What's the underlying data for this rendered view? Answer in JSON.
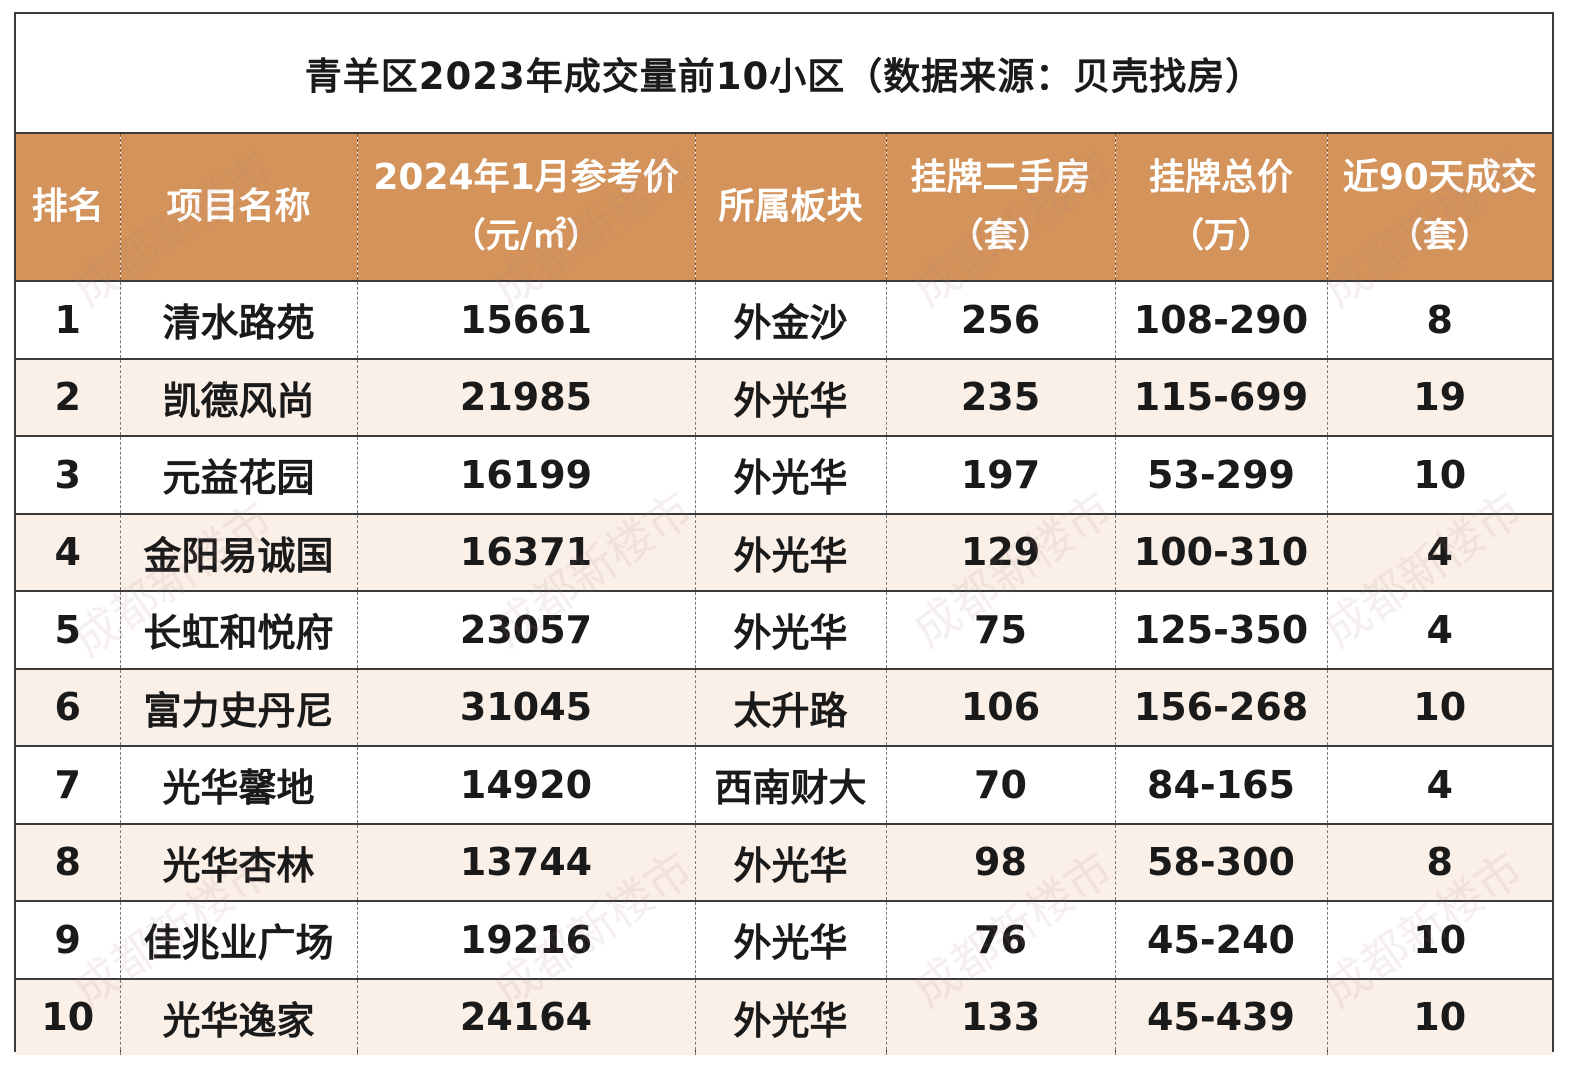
{
  "title": "青羊区2023年成交量前10小区（数据来源：贝壳找房）",
  "headers": [
    {
      "l1": "排名",
      "l2": ""
    },
    {
      "l1": "项目名称",
      "l2": ""
    },
    {
      "l1": "2024年1月参考价",
      "l2": "（元/㎡）"
    },
    {
      "l1": "所属板块",
      "l2": ""
    },
    {
      "l1": "挂牌二手房",
      "l2": "（套）"
    },
    {
      "l1": "挂牌总价",
      "l2": "（万）"
    },
    {
      "l1": "近90天成交",
      "l2": "（套）"
    }
  ],
  "rows": [
    [
      "1",
      "清水路苑",
      "15661",
      "外金沙",
      "256",
      "108-290",
      "8"
    ],
    [
      "2",
      "凯德风尚",
      "21985",
      "外光华",
      "235",
      "115-699",
      "19"
    ],
    [
      "3",
      "元益花园",
      "16199",
      "外光华",
      "197",
      "53-299",
      "10"
    ],
    [
      "4",
      "金阳易诚国",
      "16371",
      "外光华",
      "129",
      "100-310",
      "4"
    ],
    [
      "5",
      "长虹和悦府",
      "23057",
      "外光华",
      "75",
      "125-350",
      "4"
    ],
    [
      "6",
      "富力史丹尼",
      "31045",
      "太升路",
      "106",
      "156-268",
      "10"
    ],
    [
      "7",
      "光华馨地",
      "14920",
      "西南财大",
      "70",
      "84-165",
      "4"
    ],
    [
      "8",
      "光华杏林",
      "13744",
      "外光华",
      "98",
      "58-300",
      "8"
    ],
    [
      "9",
      "佳兆业广场",
      "19216",
      "外光华",
      "76",
      "45-240",
      "10"
    ],
    [
      "10",
      "光华逸家",
      "24164",
      "外光华",
      "133",
      "45-439",
      "10"
    ]
  ],
  "watermark": "成都新楼市",
  "colors": {
    "header_bg": "#d3935a",
    "stripe_bg": "#faf0e8",
    "border": "#3a3a3a"
  }
}
